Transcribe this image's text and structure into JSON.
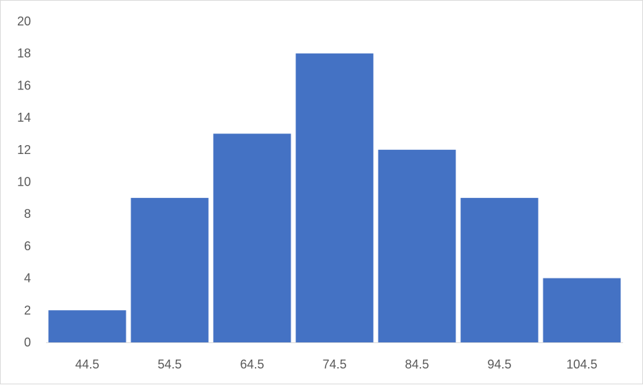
{
  "chart_data": {
    "type": "bar",
    "title": "",
    "xlabel": "",
    "ylabel": "",
    "categories": [
      "44.5",
      "54.5",
      "64.5",
      "74.5",
      "84.5",
      "94.5",
      "104.5"
    ],
    "values": [
      2,
      9,
      13,
      18,
      12,
      9,
      4
    ],
    "ylim": [
      0,
      20
    ],
    "yticks": [
      "0",
      "2",
      "4",
      "6",
      "8",
      "10",
      "12",
      "14",
      "16",
      "18",
      "20"
    ],
    "grid": false,
    "legend": "none",
    "bar_color": "#4472C4",
    "axis_color": "#d9d9d9",
    "label_color": "#595959"
  }
}
